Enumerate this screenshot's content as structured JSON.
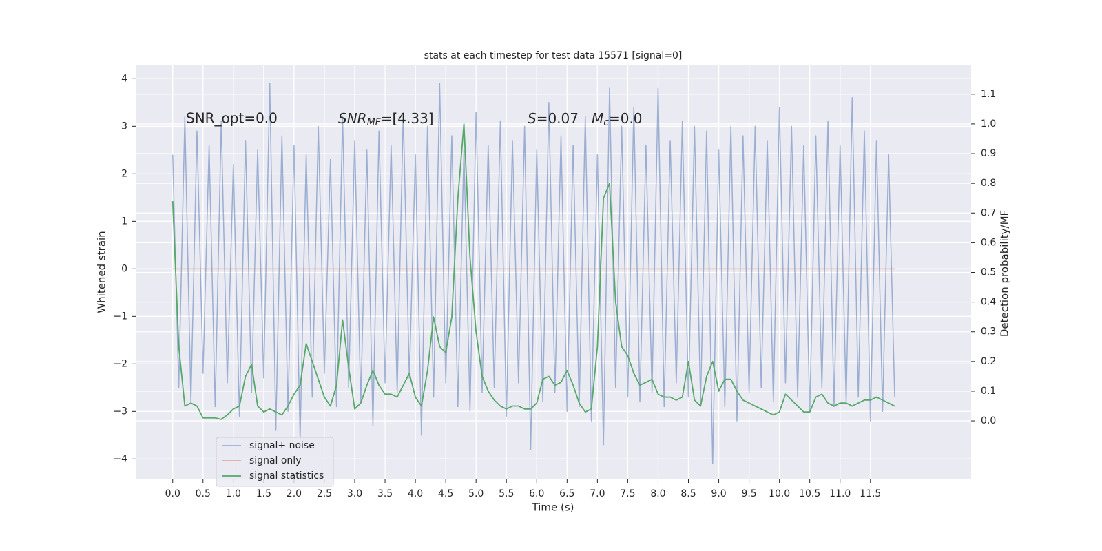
{
  "chart_data": {
    "type": "line",
    "title": "stats at each timestep for test data 15571 [signal=0]",
    "xlabel": "Time (s)",
    "ylabel": "Whitened strain",
    "y2label": "Detection probability/MF",
    "annotations": [
      {
        "text": "SNR_opt=0.0",
        "math": false
      },
      {
        "text": "SNR_MF=[4.33]",
        "math": true
      },
      {
        "text": "S=0.07",
        "math": true
      },
      {
        "text": "M_c=0.0",
        "math": true
      }
    ],
    "x": [
      0.0,
      0.1,
      0.2,
      0.3,
      0.4,
      0.5,
      0.6,
      0.7,
      0.8,
      0.9,
      1.0,
      1.1,
      1.2,
      1.3,
      1.4,
      1.5,
      1.6,
      1.7,
      1.8,
      1.9,
      2.0,
      2.1,
      2.2,
      2.3,
      2.4,
      2.5,
      2.6,
      2.7,
      2.8,
      2.9,
      3.0,
      3.1,
      3.2,
      3.3,
      3.4,
      3.5,
      3.6,
      3.7,
      3.8,
      3.9,
      4.0,
      4.1,
      4.2,
      4.3,
      4.4,
      4.5,
      4.6,
      4.7,
      4.8,
      4.9,
      5.0,
      5.1,
      5.2,
      5.3,
      5.4,
      5.5,
      5.6,
      5.7,
      5.8,
      5.9,
      6.0,
      6.1,
      6.2,
      6.3,
      6.4,
      6.5,
      6.6,
      6.7,
      6.8,
      6.9,
      7.0,
      7.1,
      7.2,
      7.3,
      7.4,
      7.5,
      7.6,
      7.7,
      7.8,
      7.9,
      8.0,
      8.1,
      8.2,
      8.3,
      8.4,
      8.5,
      8.6,
      8.7,
      8.8,
      8.9,
      9.0,
      9.1,
      9.2,
      9.3,
      9.4,
      9.5,
      9.6,
      9.7,
      9.8,
      9.9,
      10.0,
      10.1,
      10.2,
      10.3,
      10.4,
      10.5,
      10.6,
      10.7,
      10.8,
      10.9,
      11.0,
      11.1,
      11.2,
      11.3,
      11.4,
      11.5,
      11.6,
      11.7,
      11.8,
      11.9
    ],
    "series": [
      {
        "name": "signal+ noise",
        "color": "#4c72b0",
        "opacity": 0.5,
        "axis": "y",
        "values": [
          2.4,
          -2.5,
          3.2,
          -2.8,
          2.9,
          -2.2,
          2.6,
          -2.9,
          3.1,
          -2.4,
          2.2,
          -3.1,
          2.7,
          -2.6,
          2.5,
          -2.3,
          3.9,
          -3.4,
          2.8,
          -3.0,
          2.6,
          -3.6,
          2.4,
          -2.7,
          3.0,
          -2.2,
          2.3,
          -2.9,
          3.2,
          -2.5,
          2.7,
          -2.8,
          2.5,
          -3.3,
          2.9,
          -2.4,
          2.6,
          -2.6,
          3.3,
          -2.3,
          2.4,
          -3.5,
          3.0,
          -2.7,
          3.9,
          -2.4,
          2.8,
          -2.9,
          2.5,
          -3.0,
          3.3,
          -2.6,
          2.6,
          -2.5,
          3.1,
          -3.1,
          2.7,
          -2.4,
          3.0,
          -3.8,
          2.5,
          -2.8,
          3.5,
          -2.6,
          2.8,
          -3.0,
          2.6,
          -2.9,
          3.2,
          -3.2,
          2.4,
          -3.7,
          3.8,
          -2.5,
          3.0,
          -2.7,
          3.4,
          -2.8,
          2.6,
          -2.6,
          3.8,
          -2.9,
          2.7,
          -2.4,
          3.1,
          -2.7,
          3.0,
          -2.8,
          2.9,
          -4.1,
          2.5,
          -2.9,
          3.0,
          -3.2,
          2.8,
          -2.6,
          3.0,
          -2.5,
          2.7,
          -2.8,
          3.4,
          -2.4,
          3.0,
          -2.7,
          2.6,
          -3.0,
          2.8,
          -2.5,
          3.1,
          -2.9,
          2.6,
          -2.8,
          3.6,
          -2.7,
          2.9,
          -3.2,
          2.7,
          -3.0,
          2.4,
          -2.7
        ]
      },
      {
        "name": "signal only",
        "color": "#dd8452",
        "opacity": 0.6,
        "axis": "y",
        "values": [
          0,
          0,
          0,
          0,
          0,
          0,
          0,
          0,
          0,
          0,
          0,
          0,
          0,
          0,
          0,
          0,
          0,
          0,
          0,
          0,
          0,
          0,
          0,
          0,
          0,
          0,
          0,
          0,
          0,
          0,
          0,
          0,
          0,
          0,
          0,
          0,
          0,
          0,
          0,
          0,
          0,
          0,
          0,
          0,
          0,
          0,
          0,
          0,
          0,
          0,
          0,
          0,
          0,
          0,
          0,
          0,
          0,
          0,
          0,
          0,
          0,
          0,
          0,
          0,
          0,
          0,
          0,
          0,
          0,
          0,
          0,
          0,
          0,
          0,
          0,
          0,
          0,
          0,
          0,
          0,
          0,
          0,
          0,
          0,
          0,
          0,
          0,
          0,
          0,
          0,
          0,
          0,
          0,
          0,
          0,
          0,
          0,
          0,
          0,
          0,
          0,
          0,
          0,
          0,
          0,
          0,
          0,
          0,
          0,
          0,
          0,
          0,
          0,
          0,
          0,
          0,
          0,
          0,
          0,
          0
        ]
      },
      {
        "name": "signal statistics",
        "color": "#55a868",
        "opacity": 1,
        "axis": "y2",
        "values": [
          0.74,
          0.25,
          0.05,
          0.06,
          0.05,
          0.01,
          0.01,
          0.01,
          0.005,
          0.02,
          0.04,
          0.05,
          0.15,
          0.19,
          0.05,
          0.03,
          0.04,
          0.03,
          0.02,
          0.05,
          0.09,
          0.12,
          0.26,
          0.2,
          0.14,
          0.08,
          0.05,
          0.12,
          0.34,
          0.18,
          0.04,
          0.06,
          0.12,
          0.17,
          0.12,
          0.09,
          0.09,
          0.08,
          0.12,
          0.16,
          0.08,
          0.05,
          0.17,
          0.35,
          0.25,
          0.23,
          0.35,
          0.75,
          1.0,
          0.55,
          0.3,
          0.15,
          0.1,
          0.07,
          0.05,
          0.04,
          0.05,
          0.05,
          0.04,
          0.04,
          0.06,
          0.14,
          0.15,
          0.12,
          0.13,
          0.17,
          0.12,
          0.06,
          0.03,
          0.04,
          0.25,
          0.75,
          0.8,
          0.4,
          0.25,
          0.22,
          0.16,
          0.12,
          0.13,
          0.14,
          0.09,
          0.08,
          0.08,
          0.07,
          0.08,
          0.2,
          0.07,
          0.05,
          0.15,
          0.2,
          0.1,
          0.14,
          0.14,
          0.1,
          0.07,
          0.06,
          0.05,
          0.04,
          0.03,
          0.02,
          0.03,
          0.09,
          0.07,
          0.05,
          0.03,
          0.03,
          0.08,
          0.09,
          0.06,
          0.05,
          0.06,
          0.06,
          0.05,
          0.06,
          0.07,
          0.07,
          0.08,
          0.07,
          0.06,
          0.05
        ]
      }
    ],
    "xlim": [
      -0.61,
      13.16
    ],
    "ylim": [
      -4.43,
      4.28
    ],
    "y2lim": [
      -0.197,
      1.197
    ],
    "xticks": [
      {
        "value": 0,
        "label": "0.0"
      },
      0.5,
      {
        "value": 1,
        "label": "1.0"
      },
      1.5,
      {
        "value": 2,
        "label": "2.0"
      },
      2.5,
      {
        "value": 3,
        "label": "3.0"
      },
      3.5,
      {
        "value": 4,
        "label": "4.0"
      },
      4.5,
      {
        "value": 5,
        "label": "5.0"
      },
      5.5,
      {
        "value": 6,
        "label": "6.0"
      },
      6.5,
      {
        "value": 7,
        "label": "7.0"
      },
      7.5,
      {
        "value": 8,
        "label": "8.0"
      },
      8.5,
      {
        "value": 9,
        "label": "9.0"
      },
      9.5,
      {
        "value": 10,
        "label": "10.0"
      },
      10.5,
      {
        "value": 11,
        "label": "11.0"
      },
      11.5
    ],
    "yticks": [
      {
        "value": -4,
        "label": "−4"
      },
      {
        "value": -3,
        "label": "−3"
      },
      {
        "value": -2,
        "label": "−2"
      },
      {
        "value": -1,
        "label": "−1"
      },
      0,
      1,
      2,
      3,
      4
    ],
    "y2ticks": [
      {
        "value": 0,
        "label": "0.0"
      },
      0.1,
      0.2,
      0.3,
      0.4,
      0.5,
      0.6,
      0.7,
      0.8,
      0.9,
      {
        "value": 1,
        "label": "1.0"
      },
      1.1
    ],
    "grid": true,
    "legend": "lower left"
  }
}
